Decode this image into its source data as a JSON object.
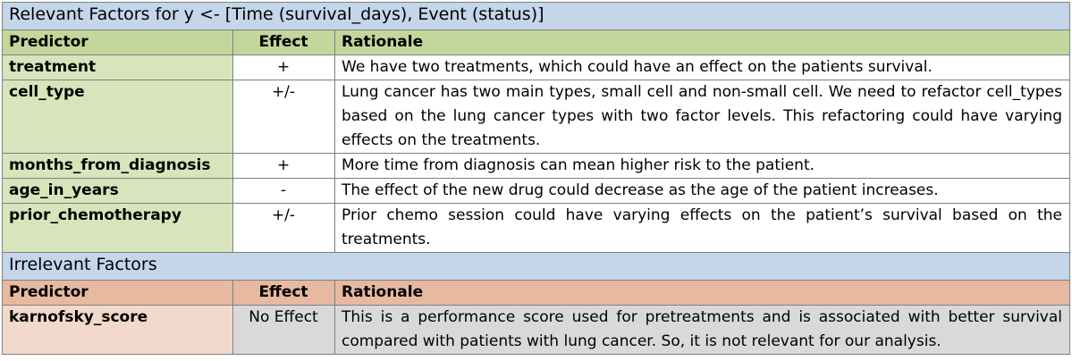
{
  "relevant": {
    "title": "Relevant Factors for y <- [Time (survival_days), Event (status)]",
    "headers": {
      "predictor": "Predictor",
      "effect": "Effect",
      "rationale": "Rationale"
    },
    "rows": [
      {
        "predictor": "treatment",
        "effect": "+",
        "rationale": "We have two treatments, which could have an effect on the patients survival."
      },
      {
        "predictor": "cell_type",
        "effect": "+/-",
        "rationale": "Lung cancer has two main types, small cell and non-small cell. We need to refactor cell_types based on the lung cancer types with two factor levels. This refactoring could have varying effects on the treatments."
      },
      {
        "predictor": "months_from_diagnosis",
        "effect": "+",
        "rationale": "More time from diagnosis can mean higher risk to the patient."
      },
      {
        "predictor": "age_in_years",
        "effect": "-",
        "rationale": "The effect of the new drug could decrease as the age of the patient increases."
      },
      {
        "predictor": "prior_chemotherapy",
        "effect": "+/-",
        "rationale": "Prior chemo session could have varying effects on the patient’s survival based on the treatments."
      }
    ]
  },
  "irrelevant": {
    "title": "Irrelevant Factors",
    "headers": {
      "predictor": "Predictor",
      "effect": "Effect",
      "rationale": "Rationale"
    },
    "rows": [
      {
        "predictor": "karnofsky_score",
        "effect": "No Effect",
        "rationale": "This is a performance score used for pretreatments and is associated with better survival compared with patients with lung cancer. So, it is not relevant for our analysis."
      }
    ]
  },
  "colors": {
    "banner": "#c5d5ea",
    "relevant_header": "#c3d69b",
    "relevant_predictor": "#d8e4bc",
    "irrelevant_header": "#e6b9a0",
    "irrelevant_predictor": "#f2d9cb",
    "no_effect_cell": "#d9d9d9"
  }
}
